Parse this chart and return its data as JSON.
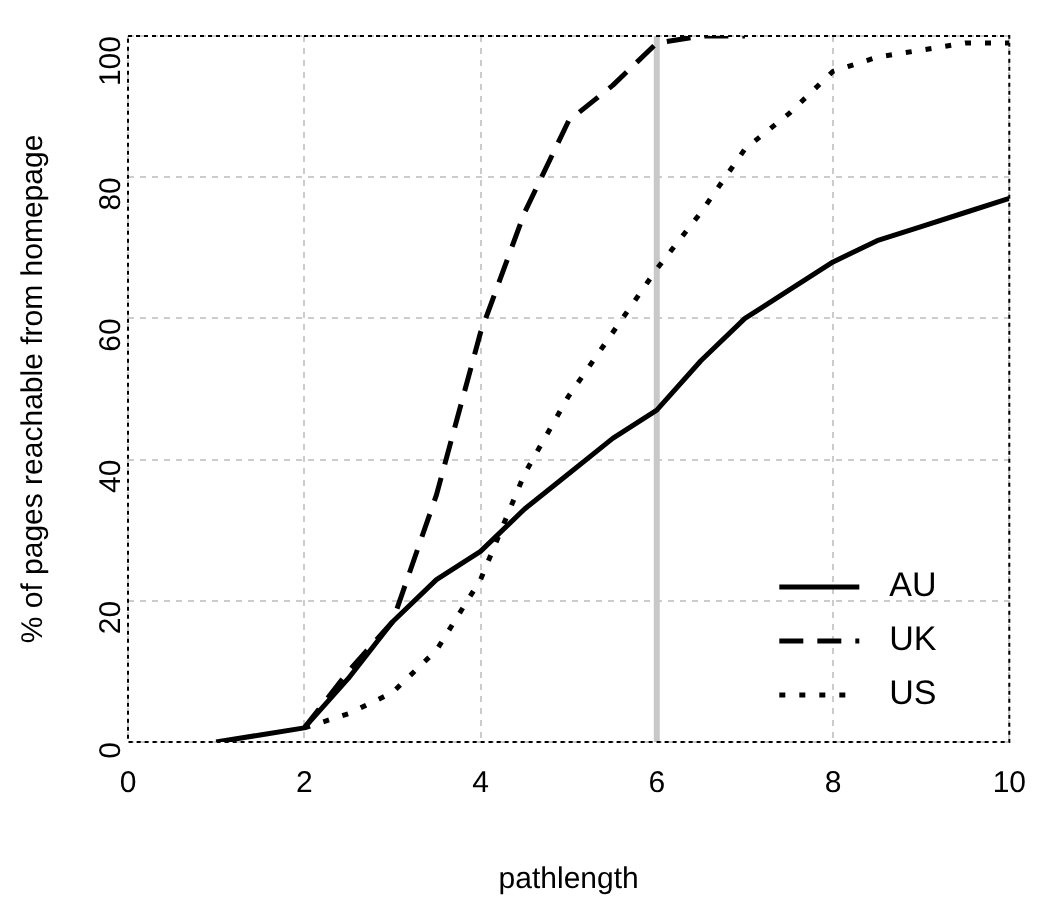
{
  "chart_data": {
    "type": "line",
    "xlabel": "pathlength",
    "ylabel": "% of pages reachable from homepage",
    "x": [
      1,
      1.5,
      2,
      2.5,
      3,
      3.5,
      4,
      4.5,
      5,
      5.5,
      6,
      6.5,
      7,
      7.5,
      8,
      8.5,
      9,
      9.5,
      10
    ],
    "series": [
      {
        "name": "AU",
        "color": "#000000",
        "line_style": "solid",
        "values": [
          0,
          1,
          2,
          9,
          17,
          23,
          27,
          33,
          38,
          43,
          47,
          54,
          60,
          64,
          68,
          71,
          73,
          75,
          77
        ]
      },
      {
        "name": "UK",
        "color": "#000000",
        "line_style": "dashed",
        "values": [
          null,
          null,
          2,
          10,
          17,
          35,
          58,
          75,
          88,
          93,
          99,
          100,
          100,
          null,
          null,
          null,
          null,
          null,
          null
        ]
      },
      {
        "name": "US",
        "color": "#000000",
        "line_style": "dotted",
        "values": [
          null,
          null,
          2,
          4,
          7,
          13,
          23,
          38,
          49,
          58,
          67,
          75,
          84,
          89,
          95,
          97,
          98,
          99,
          99
        ]
      }
    ],
    "xlim": [
      0,
      10
    ],
    "xticks": [
      0,
      2,
      4,
      6,
      8,
      10
    ],
    "ylim": [
      0,
      100
    ],
    "yticks": [
      0,
      20,
      40,
      60,
      80,
      100
    ],
    "grid": true,
    "legend": "bottom right",
    "marker": "none",
    "ref_lines": [
      {
        "axis": "x",
        "value": 6,
        "color": "#c8c8c8"
      }
    ]
  }
}
